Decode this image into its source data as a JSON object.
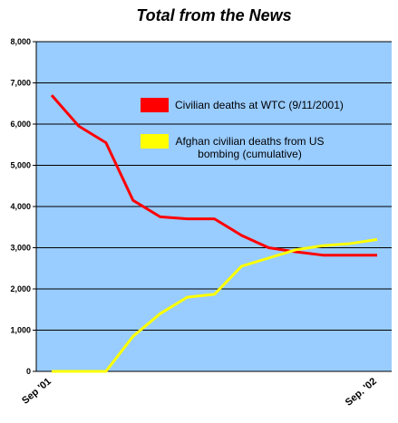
{
  "chart_data": {
    "type": "line",
    "title": "Total from the News",
    "categories": [
      "Sep '01",
      null,
      null,
      null,
      null,
      null,
      null,
      null,
      null,
      null,
      null,
      null,
      "Sep. '02"
    ],
    "series": [
      {
        "name": "Civilian deaths at WTC (9/11/2001)",
        "color": "#ff0000",
        "values": [
          6700,
          5950,
          5550,
          4150,
          3750,
          3700,
          3700,
          3300,
          3000,
          2900,
          2820,
          2820,
          2820
        ]
      },
      {
        "name": "Afghan civilian deaths from US bombing (cumulative)",
        "color": "#ffff00",
        "values": [
          0,
          0,
          0,
          850,
          1400,
          1800,
          1870,
          2550,
          2750,
          2950,
          3050,
          3100,
          3200
        ]
      }
    ],
    "ylim": [
      0,
      8000
    ],
    "yticks": [
      0,
      {
        "value": 1000,
        "label": "1,000"
      },
      {
        "value": 2000,
        "label": "2,000"
      },
      {
        "value": 3000,
        "label": "3,000"
      },
      {
        "value": 4000,
        "label": "4,000"
      },
      {
        "value": 5000,
        "label": "5,000"
      },
      {
        "value": 6000,
        "label": "6,000"
      },
      {
        "value": 7000,
        "label": "7,000"
      },
      {
        "value": 8000,
        "label": "8,000"
      }
    ],
    "grid": true,
    "plot_background": "#99ccff"
  }
}
